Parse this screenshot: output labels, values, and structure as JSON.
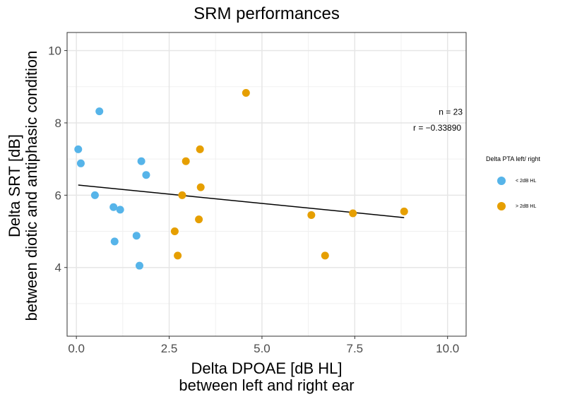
{
  "chart_data": {
    "type": "scatter",
    "title": "SRM performances",
    "xlabel": [
      "Delta DPOAE [dB HL]",
      "between left and right ear"
    ],
    "ylabel": [
      "Delta SRT [dB]",
      "between diotic and antiphasic condition"
    ],
    "xlim": [
      -0.25,
      10.5
    ],
    "ylim": [
      2.1,
      10.5
    ],
    "xticks": [
      "0.0",
      "2.5",
      "5.0",
      "7.5",
      "10.0"
    ],
    "yticks": [
      "4",
      "6",
      "8",
      "10"
    ],
    "grid": true,
    "legend": {
      "title": "Delta PTA left/ right",
      "position": "right",
      "items": [
        {
          "label": "< 2dB HL",
          "color": "#56B4E9"
        },
        {
          "label": "> 2dB HL",
          "color": "#E69F00"
        }
      ]
    },
    "series": [
      {
        "name": "< 2dB HL",
        "color": "#56B4E9",
        "points": [
          {
            "x": 0.05,
            "y": 7.27
          },
          {
            "x": 0.12,
            "y": 6.88
          },
          {
            "x": 0.5,
            "y": 6.0
          },
          {
            "x": 0.62,
            "y": 8.32
          },
          {
            "x": 1.0,
            "y": 5.67
          },
          {
            "x": 1.03,
            "y": 4.72
          },
          {
            "x": 1.18,
            "y": 5.6
          },
          {
            "x": 1.62,
            "y": 4.88
          },
          {
            "x": 1.7,
            "y": 4.05
          },
          {
            "x": 1.75,
            "y": 6.94
          },
          {
            "x": 1.88,
            "y": 6.56
          }
        ]
      },
      {
        "name": "> 2dB HL",
        "color": "#E69F00",
        "points": [
          {
            "x": 2.65,
            "y": 5.0
          },
          {
            "x": 2.73,
            "y": 4.33
          },
          {
            "x": 2.85,
            "y": 6.0
          },
          {
            "x": 2.95,
            "y": 6.94
          },
          {
            "x": 3.3,
            "y": 5.33
          },
          {
            "x": 3.33,
            "y": 7.27
          },
          {
            "x": 3.35,
            "y": 6.22
          },
          {
            "x": 4.57,
            "y": 8.83
          },
          {
            "x": 6.33,
            "y": 5.45
          },
          {
            "x": 6.7,
            "y": 4.33
          },
          {
            "x": 7.45,
            "y": 5.5
          },
          {
            "x": 8.83,
            "y": 5.55
          }
        ]
      }
    ],
    "fit_line": {
      "x": [
        0.05,
        8.83
      ],
      "y": [
        6.28,
        5.38
      ]
    },
    "annotations": [
      "n = 23",
      "r = −0.33890"
    ]
  }
}
